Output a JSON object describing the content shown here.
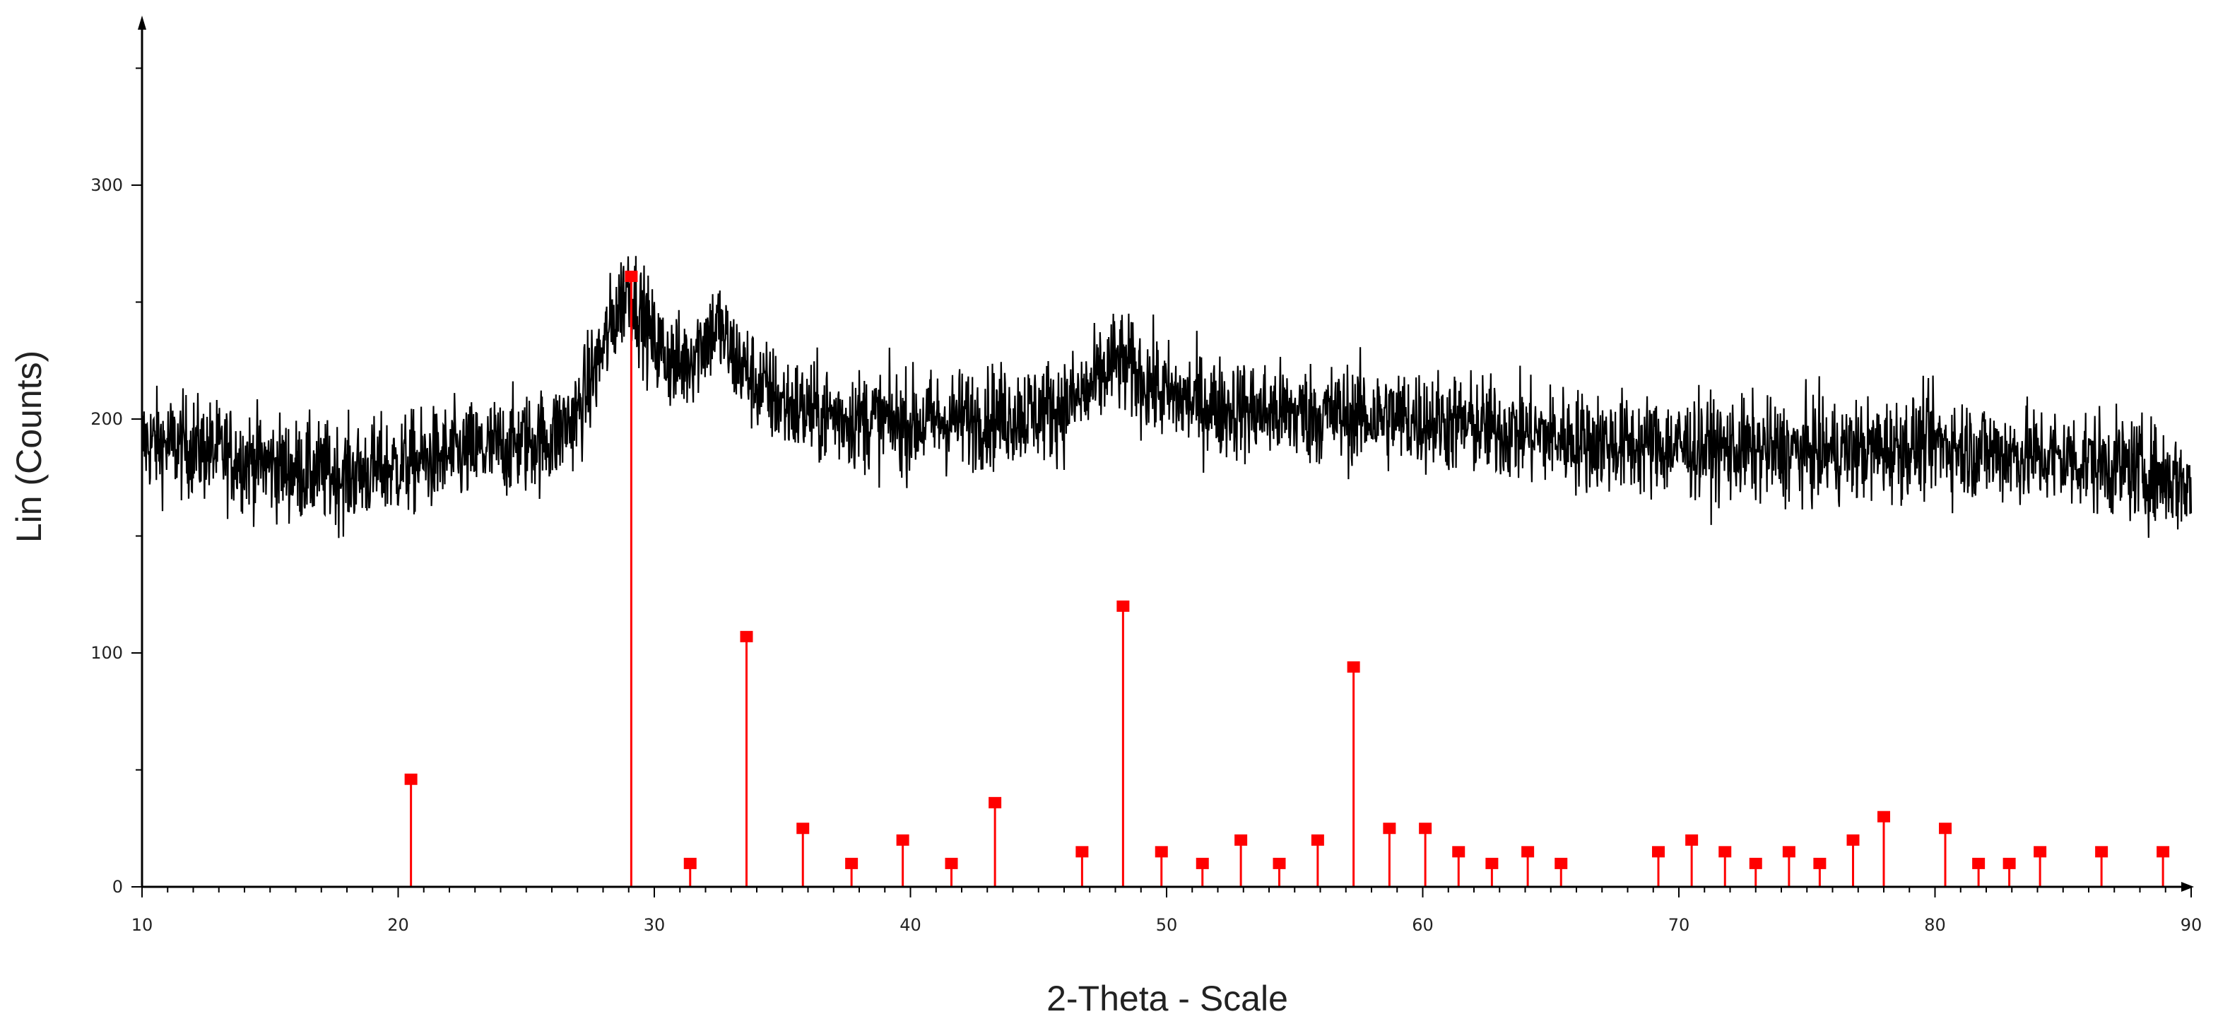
{
  "chart_data": {
    "type": "line",
    "xlabel": "2-Theta - Scale",
    "ylabel": "Lin (Counts)",
    "xlim": [
      10,
      90
    ],
    "ylim": [
      0,
      370
    ],
    "x_ticks": [
      10,
      20,
      30,
      40,
      50,
      60,
      70,
      80,
      90
    ],
    "x_tick_labels": [
      "10",
      "20",
      "30",
      "40",
      "50",
      "60",
      "70",
      "80",
      "90"
    ],
    "x_minor_step": 1,
    "y_ticks": [
      0,
      100,
      200,
      300
    ],
    "y_tick_labels": [
      "0",
      "100",
      "200",
      "300"
    ],
    "y_minor_step": 50,
    "grid": false,
    "series": [
      {
        "type": "line",
        "color": "#000000",
        "x": [
          10,
          12,
          14,
          16,
          18,
          20,
          22,
          24,
          26,
          27,
          28,
          28.5,
          29,
          29.5,
          30,
          31,
          32,
          32.5,
          33,
          34,
          35,
          36,
          38,
          40,
          42,
          44,
          46,
          47,
          48,
          49,
          50,
          52,
          54,
          56,
          58,
          60,
          62,
          64,
          66,
          68,
          70,
          72,
          74,
          76,
          78,
          80,
          82,
          84,
          86,
          88,
          90
        ],
        "y": [
          190,
          188,
          183,
          178,
          176,
          180,
          184,
          188,
          192,
          202,
          230,
          245,
          258,
          245,
          232,
          222,
          235,
          240,
          228,
          215,
          207,
          203,
          200,
          198,
          200,
          202,
          205,
          212,
          225,
          218,
          210,
          205,
          203,
          202,
          201,
          200,
          197,
          194,
          191,
          189,
          188,
          187,
          186,
          186,
          187,
          190,
          186,
          184,
          182,
          178,
          172
        ]
      },
      {
        "type": "stick",
        "color": "#ff0000",
        "x": [
          20.5,
          29.1,
          31.4,
          33.6,
          35.8,
          37.7,
          39.7,
          41.6,
          43.3,
          46.7,
          48.3,
          49.8,
          51.4,
          52.9,
          54.4,
          55.9,
          57.3,
          58.7,
          60.1,
          61.4,
          62.7,
          64.1,
          65.4,
          69.2,
          70.5,
          71.8,
          73.0,
          74.3,
          75.5,
          76.8,
          78.0,
          80.4,
          81.7,
          82.9,
          84.1,
          86.5,
          88.9
        ],
        "y": [
          46,
          261,
          10,
          107,
          25,
          10,
          20,
          10,
          36,
          15,
          120,
          15,
          10,
          20,
          10,
          20,
          94,
          25,
          25,
          15,
          10,
          15,
          10,
          15,
          20,
          15,
          10,
          15,
          10,
          20,
          30,
          25,
          10,
          10,
          15,
          15,
          15
        ]
      }
    ]
  }
}
